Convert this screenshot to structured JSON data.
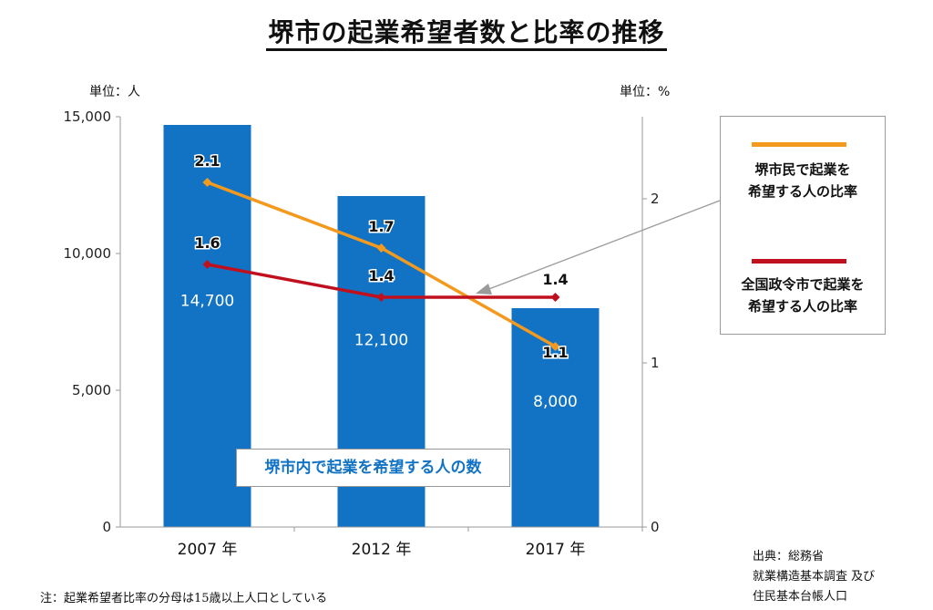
{
  "title": "堺市の起業希望者数と比率の推移",
  "units": {
    "left": "単位：人",
    "right": "単位：%"
  },
  "legend": {
    "sakai_line": [
      "堺市民で起業を",
      "希望する人の比率"
    ],
    "national_line": [
      "全国政令市で起業を",
      "希望する人の比率"
    ]
  },
  "bar_series_label": "堺市内で起業を希望する人の数",
  "source": [
    "出典：総務省",
    "就業構造基本調査 及び",
    "住民基本台帳人口"
  ],
  "note": "注：起業希望者比率の分母は15歳以上人口としている",
  "colors": {
    "bar": "#1273c4",
    "sakai": "#f39a1e",
    "national": "#c0101e"
  },
  "chart_data": {
    "type": "bar",
    "categories": [
      "2007 年",
      "2012 年",
      "2017 年"
    ],
    "left_axis": {
      "ylim": [
        0,
        15000
      ],
      "ticks": [
        "0",
        "5,000",
        "10,000",
        "15,000"
      ],
      "tick_values": [
        0,
        5000,
        10000,
        15000
      ]
    },
    "right_axis": {
      "ylim": [
        0,
        2.5
      ],
      "ticks": [
        "0",
        "1",
        "2"
      ],
      "tick_values": [
        0,
        1,
        2
      ]
    },
    "bars": {
      "name": "堺市内で起業を希望する人の数",
      "values": [
        14700,
        12100,
        8000
      ],
      "labels": [
        "14,700",
        "12,100",
        "8,000"
      ]
    },
    "lines": [
      {
        "name": "堺市民で起業を希望する人の比率",
        "values": [
          2.1,
          1.7,
          1.1
        ],
        "labels": [
          "2.1",
          "1.7",
          "1.1"
        ],
        "axis": "right"
      },
      {
        "name": "全国政令市で起業を希望する人の比率",
        "values": [
          1.6,
          1.4,
          1.4
        ],
        "labels": [
          "1.6",
          "1.4",
          "1.4"
        ],
        "axis": "right"
      }
    ],
    "grid": false,
    "legend_position": "right"
  }
}
